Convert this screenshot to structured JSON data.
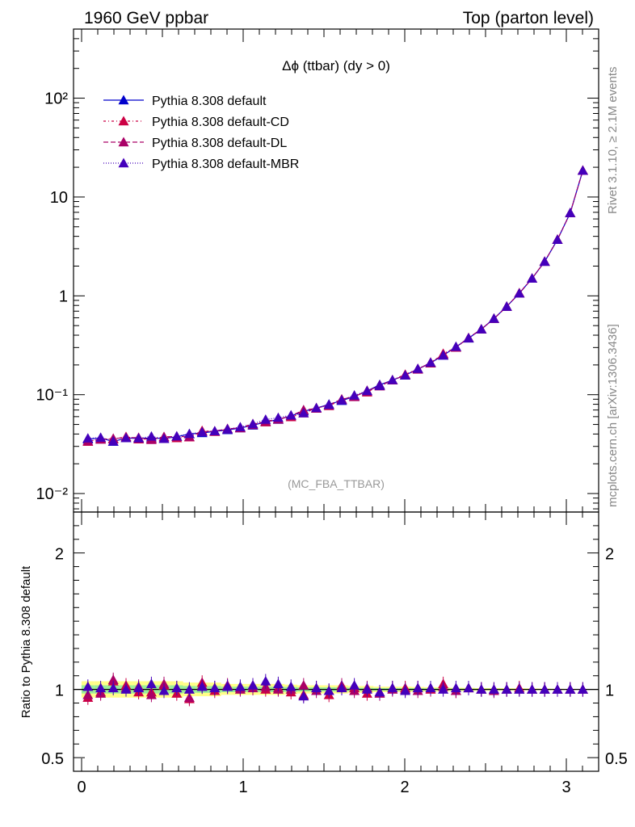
{
  "header": {
    "left": "1960 GeV ppbar",
    "right": "Top (parton level)"
  },
  "side_labels": {
    "rivet": "Rivet 3.1.10, ≥ 2.1M events",
    "mcplots": "mcplots.cern.ch [arXiv:1306.3436]"
  },
  "chart_data": [
    {
      "type": "line",
      "title": "Δϕ (ttbar) (dy > 0)",
      "watermark": "(MC_FBA_TTBAR)",
      "xlabel": "",
      "ylabel": "",
      "xlim": [
        -0.05,
        3.2
      ],
      "ylim": [
        0.0065,
        500
      ],
      "yscale": "log",
      "yticks": [
        "10⁻²",
        "10⁻¹",
        "1",
        "10",
        "10²"
      ],
      "xticks": [
        "0",
        "1",
        "2",
        "3"
      ],
      "legend_position": "top-left",
      "x": [
        0.039,
        0.118,
        0.196,
        0.275,
        0.353,
        0.432,
        0.51,
        0.589,
        0.667,
        0.746,
        0.824,
        0.903,
        0.982,
        1.06,
        1.139,
        1.217,
        1.296,
        1.374,
        1.453,
        1.531,
        1.61,
        1.688,
        1.767,
        1.845,
        1.924,
        2.003,
        2.081,
        2.16,
        2.238,
        2.317,
        2.395,
        2.474,
        2.552,
        2.631,
        2.709,
        2.788,
        2.866,
        2.945,
        3.024,
        3.102
      ],
      "series": [
        {
          "name": "Pythia 8.308 default",
          "color": "#0000cc",
          "marker": "triangle",
          "dash": "solid",
          "values": [
            0.0355,
            0.0365,
            0.0335,
            0.0365,
            0.036,
            0.0365,
            0.036,
            0.0375,
            0.04,
            0.041,
            0.0425,
            0.044,
            0.046,
            0.049,
            0.053,
            0.056,
            0.061,
            0.068,
            0.073,
            0.08,
            0.087,
            0.096,
            0.109,
            0.126,
            0.14,
            0.158,
            0.181,
            0.209,
            0.25,
            0.304,
            0.372,
            0.46,
            0.59,
            0.78,
            1.06,
            1.5,
            2.22,
            3.7,
            6.9,
            18.5
          ]
        },
        {
          "name": "Pythia 8.308 default-CD",
          "color": "#cc0044",
          "marker": "triangle",
          "dash": "3,3,1,3",
          "values": [
            0.0335,
            0.0358,
            0.0355,
            0.0375,
            0.0355,
            0.0358,
            0.0372,
            0.0365,
            0.0372,
            0.0432,
            0.0422,
            0.0448,
            0.0465,
            0.0505,
            0.0528,
            0.0568,
            0.0595,
            0.065,
            0.0735,
            0.077,
            0.089,
            0.097,
            0.106,
            0.124,
            0.141,
            0.16,
            0.183,
            0.208,
            0.26,
            0.3,
            0.375,
            0.458,
            0.588,
            0.778,
            1.07,
            1.5,
            2.23,
            3.72,
            6.9,
            18.6
          ]
        },
        {
          "name": "Pythia 8.308 default-DL",
          "color": "#aa0066",
          "marker": "triangle",
          "dash": "6,3",
          "values": [
            0.034,
            0.0352,
            0.036,
            0.0368,
            0.0368,
            0.035,
            0.0375,
            0.0378,
            0.0375,
            0.0422,
            0.0428,
            0.0452,
            0.046,
            0.0495,
            0.054,
            0.0562,
            0.061,
            0.07,
            0.0725,
            0.079,
            0.09,
            0.095,
            0.11,
            0.122,
            0.14,
            0.158,
            0.18,
            0.212,
            0.254,
            0.302,
            0.376,
            0.46,
            0.586,
            0.78,
            1.06,
            1.5,
            2.22,
            3.7,
            6.88,
            18.5
          ]
        },
        {
          "name": "Pythia 8.308 default-MBR",
          "color": "#4400bb",
          "marker": "triangle",
          "dash": "1,2",
          "values": [
            0.0362,
            0.0368,
            0.0338,
            0.0365,
            0.0362,
            0.0378,
            0.0358,
            0.038,
            0.0402,
            0.0418,
            0.0428,
            0.0448,
            0.047,
            0.0505,
            0.056,
            0.0585,
            0.062,
            0.065,
            0.0735,
            0.079,
            0.088,
            0.0985,
            0.109,
            0.123,
            0.141,
            0.157,
            0.183,
            0.211,
            0.25,
            0.306,
            0.374,
            0.459,
            0.588,
            0.778,
            1.06,
            1.5,
            2.22,
            3.7,
            6.9,
            18.5
          ]
        }
      ]
    },
    {
      "type": "line",
      "title": "",
      "xlabel": "",
      "ylabel": "Ratio to Pythia 8.308 default",
      "xlim": [
        -0.05,
        3.2
      ],
      "ylim": [
        0.4,
        2.3
      ],
      "yticks": [
        "0.5",
        "1",
        "2"
      ],
      "xticks": [
        "0",
        "1",
        "2",
        "3"
      ],
      "ratio_series": [
        {
          "name": "Pythia 8.308 default-CD",
          "color": "#cc0044",
          "values": [
            0.94,
            0.98,
            1.06,
            1.03,
            0.98,
            0.98,
            1.03,
            0.97,
            0.93,
            1.05,
            0.99,
            1.02,
            1.01,
            1.03,
            1.0,
            1.01,
            0.98,
            0.96,
            1.01,
            0.96,
            1.02,
            1.01,
            0.97,
            0.98,
            1.01,
            1.01,
            1.01,
            1.0,
            1.04,
            0.99,
            1.01,
            1.0,
            1.0,
            1.0,
            1.01,
            1.0,
            1.0,
            1.0,
            1.0,
            1.0
          ]
        },
        {
          "name": "Pythia 8.308 default-DL",
          "color": "#aa0066",
          "values": [
            0.96,
            0.97,
            1.07,
            1.01,
            1.02,
            0.96,
            1.04,
            1.01,
            0.94,
            1.03,
            1.01,
            1.03,
            1.0,
            1.01,
            1.02,
            1.0,
            1.0,
            1.03,
            0.99,
            0.99,
            1.03,
            0.99,
            1.01,
            0.97,
            1.0,
            1.0,
            0.99,
            1.01,
            1.02,
            0.99,
            1.01,
            1.0,
            0.99,
            1.0,
            1.0,
            1.0,
            1.0,
            1.0,
            1.0,
            1.0
          ]
        },
        {
          "name": "Pythia 8.308 default-MBR",
          "color": "#4400bb",
          "values": [
            1.02,
            1.01,
            1.01,
            1.0,
            1.01,
            1.04,
            0.99,
            1.01,
            1.0,
            1.02,
            1.01,
            1.02,
            1.02,
            1.03,
            1.06,
            1.04,
            1.02,
            0.95,
            1.01,
            0.99,
            1.01,
            1.03,
            1.0,
            0.98,
            1.01,
            0.99,
            1.01,
            1.01,
            1.0,
            1.01,
            1.01,
            1.0,
            1.0,
            1.0,
            1.0,
            1.0,
            1.0,
            1.0,
            1.0,
            1.0
          ]
        }
      ],
      "band_yellow": [
        0.06,
        0.06,
        0.06,
        0.06,
        0.06,
        0.06,
        0.06,
        0.06,
        0.05,
        0.05,
        0.05,
        0.04,
        0.04,
        0.04,
        0.04,
        0.04,
        0.035,
        0.03,
        0.03,
        0.03,
        0.03,
        0.025,
        0.025,
        0.02,
        0.02,
        0.02,
        0.018,
        0.016,
        0.015,
        0.013,
        0.012,
        0.01,
        0.01,
        0.009,
        0.008,
        0.007,
        0.006,
        0.005,
        0.004,
        0.003
      ],
      "band_green": [
        0.03,
        0.03,
        0.03,
        0.03,
        0.03,
        0.03,
        0.03,
        0.03,
        0.025,
        0.025,
        0.025,
        0.02,
        0.02,
        0.02,
        0.02,
        0.02,
        0.018,
        0.015,
        0.015,
        0.015,
        0.015,
        0.012,
        0.012,
        0.01,
        0.01,
        0.01,
        0.009,
        0.008,
        0.007,
        0.006,
        0.006,
        0.005,
        0.005,
        0.004,
        0.004,
        0.003,
        0.003,
        0.002,
        0.002,
        0.002
      ]
    }
  ]
}
